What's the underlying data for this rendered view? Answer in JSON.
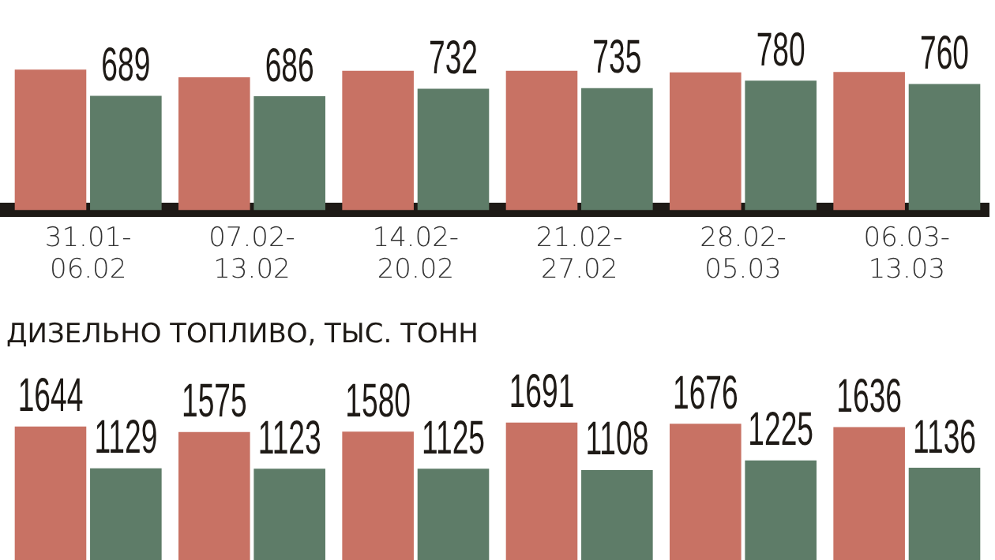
{
  "chart_data": [
    {
      "type": "bar",
      "categories": [
        "31.01-06.02",
        "07.02-13.02",
        "14.02-20.02",
        "21.02-27.02",
        "28.02-05.03",
        "06.03-13.03"
      ],
      "tick_labels": "x",
      "grid": false,
      "legend": false,
      "series": [
        {
          "color": "#c87264",
          "values": [
            847,
            800,
            840,
            840,
            830,
            833
          ],
          "value_labels": [
            null,
            null,
            null,
            null,
            null,
            null
          ]
        },
        {
          "color": "#5e7c68",
          "values": [
            689,
            686,
            732,
            735,
            780,
            760
          ],
          "value_labels": [
            "689",
            "686",
            "732",
            "735",
            "780",
            "760"
          ]
        }
      ]
    },
    {
      "type": "bar",
      "title": "ДИЗЕЛЬНО ТОПЛИВО, ТЫС. ТОНН",
      "categories": [
        null,
        null,
        null,
        null,
        null,
        null
      ],
      "tick_labels": false,
      "grid": false,
      "legend": false,
      "data_labels": true,
      "series": [
        {
          "color": "#c87264",
          "values": [
            1644,
            1575,
            1580,
            1691,
            1676,
            1636
          ]
        },
        {
          "color": "#5e7c68",
          "values": [
            1129,
            1123,
            1125,
            1108,
            1225,
            1136
          ]
        }
      ]
    }
  ]
}
